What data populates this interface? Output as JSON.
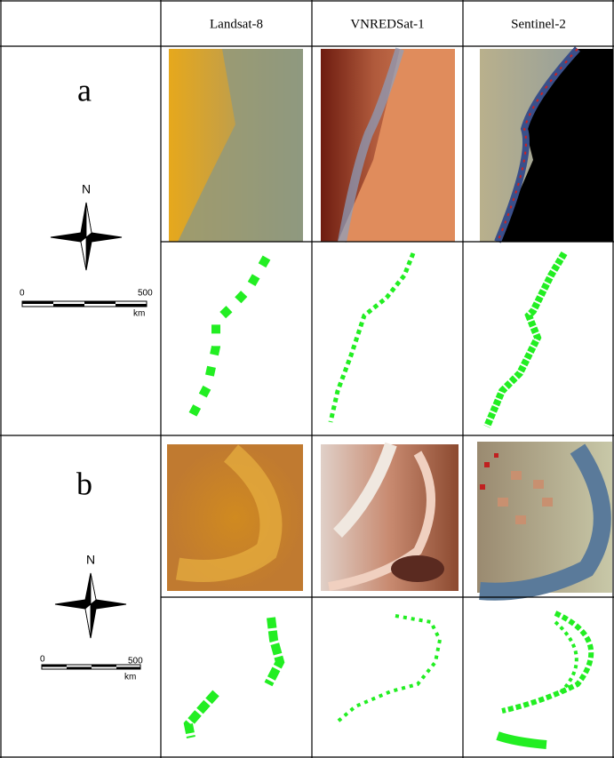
{
  "header": {
    "columns": [
      "Landsat-8",
      "VNREDSat-1",
      "Sentinel-2"
    ]
  },
  "rows": [
    {
      "label": "a",
      "north": "N",
      "scale_start": "0",
      "scale_end": "500",
      "scale_unit": "km"
    },
    {
      "label": "b",
      "north": "N",
      "scale_start": "0",
      "scale_end": "500",
      "scale_unit": "km"
    }
  ]
}
